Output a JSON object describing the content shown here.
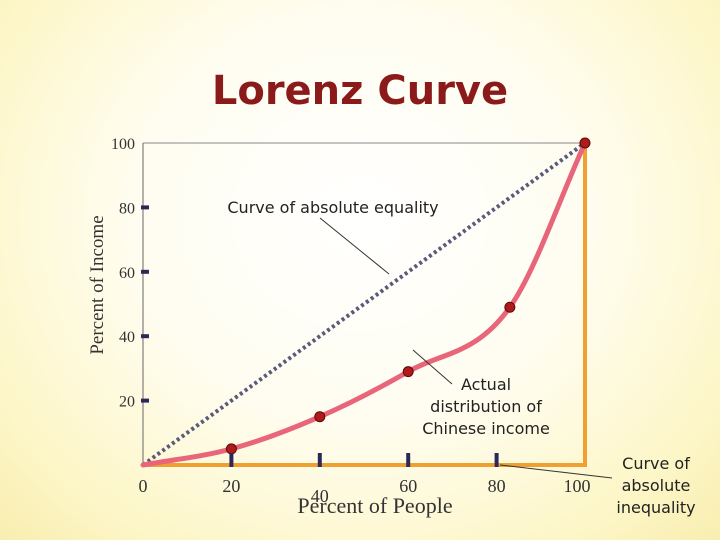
{
  "chart_data": {
    "type": "line",
    "title": "Lorenz Curve",
    "xlabel": "Percent of People",
    "ylabel": "Percent of Income",
    "xlim": [
      0,
      100
    ],
    "ylim": [
      0,
      100
    ],
    "x_ticks": [
      0,
      20,
      40,
      60,
      80,
      100
    ],
    "y_ticks": [
      20,
      40,
      60,
      80,
      100
    ],
    "series": [
      {
        "role": "equality",
        "points": [
          [
            0,
            0
          ],
          [
            100,
            100
          ]
        ]
      },
      {
        "role": "actual",
        "points": [
          [
            0,
            0
          ],
          [
            20,
            5
          ],
          [
            40,
            15
          ],
          [
            60,
            29
          ],
          [
            83,
            49
          ],
          [
            100,
            100
          ]
        ]
      }
    ],
    "annotations": {
      "equality": "Curve of absolute equality",
      "actual": [
        "Actual",
        "distribution of",
        "Chinese income"
      ],
      "inequality": [
        "Curve of",
        "absolute",
        "inequality"
      ]
    },
    "colors": {
      "title": "#8b1a1a",
      "actual_line": "#e8657a",
      "point": "#b01a1a",
      "equality_line": "#5a5a7a",
      "inequality_line": "#f0a030",
      "tick": "#2a2a5a"
    }
  }
}
